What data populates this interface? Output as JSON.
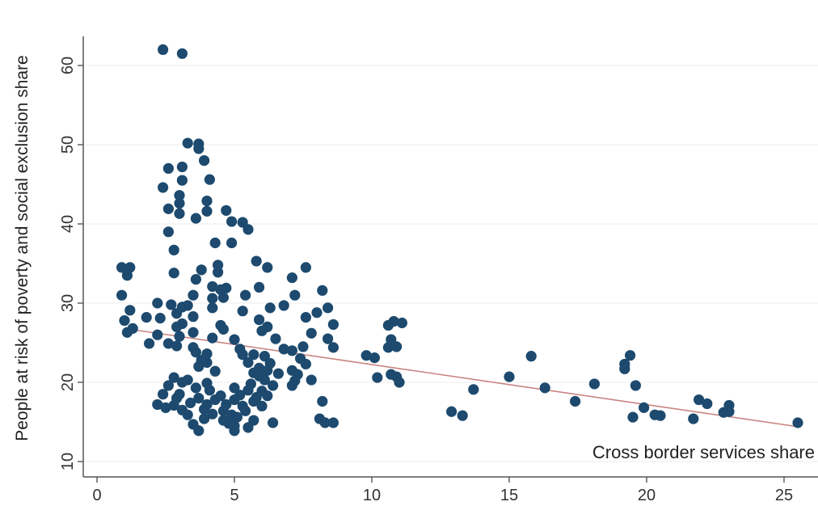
{
  "chart_data": {
    "type": "scatter",
    "title": "",
    "xlabel": "",
    "ylabel": "People at risk of poverty and social exclusion share",
    "annotation": "Cross border services share",
    "xlim": [
      -0.8,
      26.8
    ],
    "ylim": [
      9.0,
      64.0
    ],
    "xticks": [
      0,
      5,
      10,
      15,
      20,
      25
    ],
    "yticks": [
      10,
      20,
      30,
      40,
      50,
      60
    ],
    "grid": true,
    "legend": "none",
    "colors": {
      "point": "#1d4a6e",
      "fit_line": "#c98482",
      "grid": "#ececec",
      "axis": "#555555"
    },
    "fit_line": {
      "x": [
        1.0,
        25.5
      ],
      "y": [
        26.8,
        14.4
      ]
    },
    "points": [
      [
        2.4,
        62.0
      ],
      [
        3.1,
        61.5
      ],
      [
        3.3,
        50.2
      ],
      [
        3.7,
        50.1
      ],
      [
        3.7,
        49.5
      ],
      [
        3.9,
        48.0
      ],
      [
        2.6,
        47.0
      ],
      [
        3.1,
        47.2
      ],
      [
        3.1,
        45.5
      ],
      [
        4.1,
        45.6
      ],
      [
        2.4,
        44.6
      ],
      [
        3.0,
        43.6
      ],
      [
        3.0,
        42.6
      ],
      [
        4.0,
        42.9
      ],
      [
        2.6,
        41.9
      ],
      [
        3.0,
        41.3
      ],
      [
        4.0,
        41.6
      ],
      [
        4.7,
        41.7
      ],
      [
        3.6,
        40.7
      ],
      [
        4.9,
        40.3
      ],
      [
        5.3,
        40.2
      ],
      [
        2.6,
        39.0
      ],
      [
        5.5,
        39.3
      ],
      [
        4.3,
        37.6
      ],
      [
        4.9,
        37.6
      ],
      [
        2.8,
        36.7
      ],
      [
        0.9,
        34.5
      ],
      [
        1.2,
        34.5
      ],
      [
        1.1,
        33.5
      ],
      [
        5.8,
        35.3
      ],
      [
        4.4,
        34.8
      ],
      [
        6.2,
        34.5
      ],
      [
        3.8,
        34.2
      ],
      [
        7.6,
        34.5
      ],
      [
        2.8,
        33.8
      ],
      [
        4.4,
        33.9
      ],
      [
        3.6,
        33.0
      ],
      [
        7.1,
        33.2
      ],
      [
        4.2,
        32.1
      ],
      [
        4.7,
        31.9
      ],
      [
        4.5,
        31.7
      ],
      [
        5.9,
        32.0
      ],
      [
        8.2,
        31.6
      ],
      [
        4.2,
        30.6
      ],
      [
        5.4,
        31.0
      ],
      [
        3.5,
        31.0
      ],
      [
        4.6,
        30.7
      ],
      [
        7.2,
        31.0
      ],
      [
        0.9,
        31.0
      ],
      [
        2.2,
        30.0
      ],
      [
        2.7,
        29.8
      ],
      [
        3.3,
        29.7
      ],
      [
        3.1,
        29.5
      ],
      [
        6.8,
        29.7
      ],
      [
        4.2,
        29.4
      ],
      [
        6.3,
        29.4
      ],
      [
        8.4,
        29.4
      ],
      [
        1.2,
        29.1
      ],
      [
        5.3,
        29.0
      ],
      [
        8.0,
        28.8
      ],
      [
        2.9,
        28.7
      ],
      [
        3.5,
        28.3
      ],
      [
        1.8,
        28.2
      ],
      [
        2.3,
        28.1
      ],
      [
        7.6,
        28.2
      ],
      [
        1.0,
        27.8
      ],
      [
        5.9,
        27.9
      ],
      [
        3.1,
        27.4
      ],
      [
        2.9,
        27.0
      ],
      [
        4.5,
        27.2
      ],
      [
        6.2,
        27.0
      ],
      [
        8.6,
        27.3
      ],
      [
        1.1,
        26.3
      ],
      [
        1.3,
        26.8
      ],
      [
        3.5,
        26.3
      ],
      [
        4.6,
        26.7
      ],
      [
        6.0,
        26.5
      ],
      [
        7.8,
        26.2
      ],
      [
        2.2,
        26.0
      ],
      [
        3.0,
        25.8
      ],
      [
        4.2,
        25.6
      ],
      [
        6.5,
        25.5
      ],
      [
        5.0,
        25.4
      ],
      [
        8.4,
        25.5
      ],
      [
        1.9,
        24.9
      ],
      [
        2.6,
        24.9
      ],
      [
        2.9,
        24.6
      ],
      [
        3.5,
        24.4
      ],
      [
        5.2,
        24.2
      ],
      [
        6.8,
        24.2
      ],
      [
        7.1,
        24.0
      ],
      [
        7.5,
        24.5
      ],
      [
        8.6,
        24.4
      ],
      [
        3.6,
        23.8
      ],
      [
        4.0,
        23.6
      ],
      [
        5.3,
        23.5
      ],
      [
        5.7,
        23.5
      ],
      [
        6.1,
        23.3
      ],
      [
        7.4,
        23.0
      ],
      [
        3.8,
        22.8
      ],
      [
        4.0,
        22.5
      ],
      [
        5.5,
        22.5
      ],
      [
        6.3,
        22.4
      ],
      [
        7.6,
        22.3
      ],
      [
        3.7,
        22.0
      ],
      [
        5.9,
        21.8
      ],
      [
        6.2,
        21.5
      ],
      [
        7.1,
        21.5
      ],
      [
        4.3,
        21.4
      ],
      [
        5.7,
        21.2
      ],
      [
        6.6,
        21.1
      ],
      [
        7.3,
        21.0
      ],
      [
        5.9,
        20.8
      ],
      [
        2.8,
        20.6
      ],
      [
        3.3,
        20.3
      ],
      [
        6.1,
        20.3
      ],
      [
        7.2,
        20.2
      ],
      [
        7.8,
        20.3
      ],
      [
        3.1,
        20.0
      ],
      [
        4.0,
        19.9
      ],
      [
        5.6,
        19.8
      ],
      [
        6.4,
        19.6
      ],
      [
        2.6,
        19.6
      ],
      [
        5.0,
        19.3
      ],
      [
        7.1,
        19.6
      ],
      [
        3.6,
        19.3
      ],
      [
        4.1,
        19.0
      ],
      [
        5.5,
        19.0
      ],
      [
        6.0,
        18.9
      ],
      [
        2.4,
        18.5
      ],
      [
        3.0,
        18.5
      ],
      [
        4.5,
        18.3
      ],
      [
        5.2,
        18.4
      ],
      [
        5.8,
        18.1
      ],
      [
        6.2,
        18.3
      ],
      [
        2.9,
        18.0
      ],
      [
        3.7,
        18.0
      ],
      [
        4.3,
        17.8
      ],
      [
        5.0,
        17.8
      ],
      [
        5.7,
        17.6
      ],
      [
        2.2,
        17.2
      ],
      [
        2.8,
        17.1
      ],
      [
        3.4,
        17.4
      ],
      [
        4.0,
        17.2
      ],
      [
        4.7,
        17.2
      ],
      [
        5.3,
        17.0
      ],
      [
        6.0,
        17.0
      ],
      [
        8.2,
        17.6
      ],
      [
        2.5,
        16.8
      ],
      [
        3.1,
        16.5
      ],
      [
        3.9,
        16.6
      ],
      [
        4.6,
        16.4
      ],
      [
        5.4,
        16.4
      ],
      [
        4.2,
        16.0
      ],
      [
        3.3,
        15.9
      ],
      [
        4.9,
        15.9
      ],
      [
        5.1,
        15.6
      ],
      [
        3.9,
        15.4
      ],
      [
        4.6,
        15.2
      ],
      [
        5.7,
        15.2
      ],
      [
        8.1,
        15.4
      ],
      [
        3.5,
        14.7
      ],
      [
        4.8,
        14.8
      ],
      [
        5.0,
        14.5
      ],
      [
        6.4,
        14.9
      ],
      [
        8.3,
        14.9
      ],
      [
        8.6,
        14.9
      ],
      [
        3.7,
        13.9
      ],
      [
        5.0,
        13.9
      ],
      [
        5.5,
        14.3
      ],
      [
        9.8,
        23.4
      ],
      [
        10.1,
        23.1
      ],
      [
        10.2,
        20.6
      ],
      [
        10.6,
        27.2
      ],
      [
        10.8,
        27.7
      ],
      [
        10.6,
        24.4
      ],
      [
        10.9,
        24.5
      ],
      [
        10.7,
        21.0
      ],
      [
        10.9,
        20.7
      ],
      [
        11.0,
        20.0
      ],
      [
        11.1,
        27.5
      ],
      [
        10.7,
        25.4
      ],
      [
        12.9,
        16.3
      ],
      [
        13.3,
        15.8
      ],
      [
        13.7,
        19.1
      ],
      [
        15.0,
        20.7
      ],
      [
        15.8,
        23.3
      ],
      [
        16.3,
        19.3
      ],
      [
        17.4,
        17.6
      ],
      [
        18.1,
        19.8
      ],
      [
        19.2,
        21.7
      ],
      [
        19.2,
        22.3
      ],
      [
        19.4,
        23.4
      ],
      [
        19.6,
        19.6
      ],
      [
        19.9,
        16.8
      ],
      [
        19.5,
        15.6
      ],
      [
        20.3,
        15.9
      ],
      [
        20.5,
        15.8
      ],
      [
        21.7,
        15.4
      ],
      [
        21.9,
        17.8
      ],
      [
        22.2,
        17.3
      ],
      [
        22.8,
        16.2
      ],
      [
        23.0,
        16.3
      ],
      [
        23.0,
        17.1
      ],
      [
        25.5,
        14.9
      ]
    ]
  }
}
